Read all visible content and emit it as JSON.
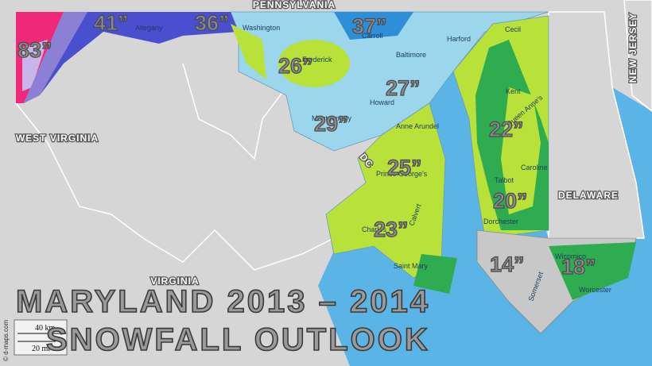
{
  "title": [
    "MARYLAND 2013 – 2014",
    "SNOWFALL OUTLOOK"
  ],
  "states": [
    "PENNSYLVANIA",
    "WEST VIRGINIA",
    "VIRGINIA",
    "DELAWARE",
    "NEW JERSEY",
    "DC"
  ],
  "counties": [
    "Washington",
    "Allegany",
    "Frederick",
    "Carroll",
    "Baltimore",
    "Harford",
    "Cecil",
    "Howard",
    "Montgomery",
    "Anne Arundel",
    "Prince George's",
    "Charles",
    "Calvert",
    "Saint Mary",
    "Kent",
    "Queen Anne's",
    "Caroline",
    "Talbot",
    "Dorchester",
    "Wicomico",
    "Somerset",
    "Worcester"
  ],
  "snowfall": [
    "83”",
    "41”",
    "36”",
    "37”",
    "26”",
    "27”",
    "29”",
    "22”",
    "25”",
    "20”",
    "23”",
    "14”",
    "18”"
  ],
  "scale": [
    "40 km",
    "20 mi"
  ],
  "credit": "© d-maps.com"
}
